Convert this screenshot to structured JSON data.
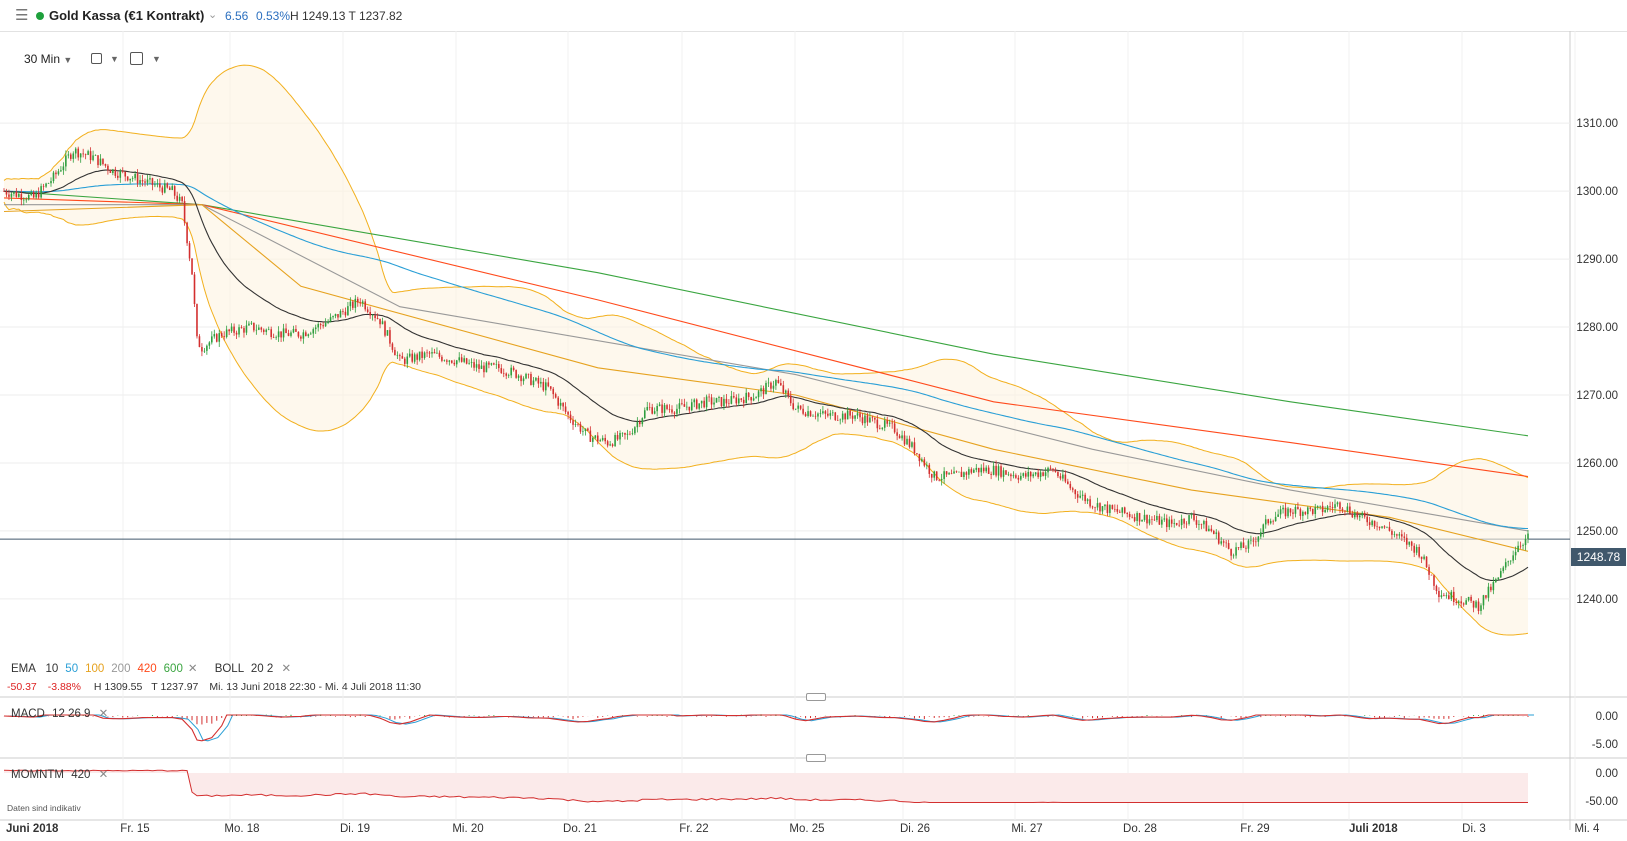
{
  "header": {
    "instrument": "Gold Kassa (€1 Kontrakt)",
    "change": "6.56",
    "change_pct": "0.53%",
    "high_low": "H 1249.13 T 1237.82",
    "status_color": "#1ea03c"
  },
  "toolbar": {
    "interval": "30 Min",
    "icons": [
      "calendar-icon",
      "chart-type-icon"
    ]
  },
  "legend": {
    "ema_label": "EMA",
    "ema_periods": [
      {
        "value": "10",
        "color": "#333333"
      },
      {
        "value": "50",
        "color": "#2a9fd6"
      },
      {
        "value": "100",
        "color": "#e6a21f"
      },
      {
        "value": "200",
        "color": "#999999"
      },
      {
        "value": "420",
        "color": "#ff4a1c"
      },
      {
        "value": "600",
        "color": "#3aa540"
      }
    ],
    "boll_label": "BOLL",
    "boll_params": "20  2",
    "range_change": "-50.37",
    "range_pct": "-3.88%",
    "range_high": "H 1309.55",
    "range_low": "T 1237.97",
    "range_dates": "Mi. 13 Juni 2018 22:30 - Mi. 4 Juli 2018 11:30"
  },
  "current_price": "1248.78",
  "macd": {
    "label": "MACD",
    "params": "12  26  9",
    "ticks": [
      "0.00",
      "-5.00"
    ]
  },
  "momentum": {
    "label": "MOMNTM",
    "params": "420",
    "ticks": [
      "0.00",
      "-50.00"
    ]
  },
  "footnote": "Daten sind indikativ",
  "chart_data": {
    "type": "candlestick",
    "y_ticks": [
      "1310.00",
      "1300.00",
      "1290.00",
      "1280.00",
      "1270.00",
      "1260.00",
      "1250.00",
      "1240.00"
    ],
    "ylim": [
      1231,
      1314
    ],
    "x_labels": [
      "Juni 2018",
      "Fr. 15",
      "Mo. 18",
      "Di. 19",
      "Mi. 20",
      "Do. 21",
      "Fr. 22",
      "Mo. 25",
      "Di. 26",
      "Mi. 27",
      "Do. 28",
      "Fr. 29",
      "Juli 2018",
      "Di. 3",
      "Mi. 4"
    ],
    "x_bold": [
      "Juni 2018",
      "Juli 2018"
    ],
    "close_path": [
      [
        0,
        1300
      ],
      [
        3,
        1299
      ],
      [
        5,
        1302
      ],
      [
        7,
        1306
      ],
      [
        9,
        1305
      ],
      [
        11,
        1303
      ],
      [
        13,
        1302
      ],
      [
        15,
        1301
      ],
      [
        17,
        1300
      ],
      [
        18,
        1298
      ],
      [
        19,
        1288
      ],
      [
        19.5,
        1278
      ],
      [
        20,
        1277
      ],
      [
        22,
        1279
      ],
      [
        25,
        1280
      ],
      [
        28,
        1279
      ],
      [
        30,
        1279
      ],
      [
        33,
        1281
      ],
      [
        36,
        1284
      ],
      [
        38,
        1281
      ],
      [
        40,
        1275
      ],
      [
        43,
        1276
      ],
      [
        46,
        1275
      ],
      [
        48,
        1274
      ],
      [
        50,
        1274
      ],
      [
        52,
        1273
      ],
      [
        55,
        1271
      ],
      [
        57,
        1267
      ],
      [
        59,
        1264
      ],
      [
        61,
        1263
      ],
      [
        63,
        1264
      ],
      [
        65,
        1268
      ],
      [
        68,
        1268
      ],
      [
        71,
        1269
      ],
      [
        73,
        1269
      ],
      [
        76,
        1270
      ],
      [
        78,
        1272
      ],
      [
        80,
        1268
      ],
      [
        83,
        1267
      ],
      [
        86,
        1267
      ],
      [
        88,
        1266
      ],
      [
        90,
        1265
      ],
      [
        92,
        1262
      ],
      [
        94,
        1258
      ],
      [
        96,
        1258
      ],
      [
        98,
        1259
      ],
      [
        100,
        1259
      ],
      [
        103,
        1258
      ],
      [
        106,
        1259
      ],
      [
        108,
        1256
      ],
      [
        110,
        1254
      ],
      [
        112,
        1253
      ],
      [
        115,
        1252
      ],
      [
        118,
        1251
      ],
      [
        120,
        1252
      ],
      [
        122,
        1250
      ],
      [
        124,
        1247
      ],
      [
        126,
        1248
      ],
      [
        128,
        1252
      ],
      [
        130,
        1253
      ],
      [
        133,
        1253
      ],
      [
        135,
        1254
      ],
      [
        137,
        1252
      ],
      [
        139,
        1251
      ],
      [
        141,
        1249
      ],
      [
        143,
        1247
      ],
      [
        145,
        1241
      ],
      [
        147,
        1240
      ],
      [
        149,
        1239
      ],
      [
        151,
        1243
      ],
      [
        153,
        1248
      ],
      [
        154,
        1249
      ]
    ],
    "series": [
      {
        "name": "EMA 600",
        "color": "#3aa540",
        "points": [
          [
            0,
            1300
          ],
          [
            20,
            1298
          ],
          [
            60,
            1288
          ],
          [
            100,
            1276
          ],
          [
            130,
            1269
          ],
          [
            154,
            1264
          ]
        ]
      },
      {
        "name": "EMA 420",
        "color": "#ff4a1c",
        "points": [
          [
            0,
            1299
          ],
          [
            20,
            1298
          ],
          [
            60,
            1284
          ],
          [
            100,
            1269
          ],
          [
            130,
            1263
          ],
          [
            154,
            1258
          ]
        ]
      },
      {
        "name": "EMA 200",
        "color": "#999999",
        "points": [
          [
            0,
            1298
          ],
          [
            20,
            1298
          ],
          [
            40,
            1283
          ],
          [
            80,
            1273
          ],
          [
            110,
            1262
          ],
          [
            130,
            1256
          ],
          [
            154,
            1250
          ]
        ]
      },
      {
        "name": "EMA 100",
        "color": "#e6a21f",
        "points": [
          [
            0,
            1297
          ],
          [
            20,
            1298
          ],
          [
            30,
            1286
          ],
          [
            60,
            1274
          ],
          [
            80,
            1270
          ],
          [
            100,
            1262
          ],
          [
            120,
            1256
          ],
          [
            140,
            1252
          ],
          [
            154,
            1247
          ]
        ]
      }
    ]
  }
}
